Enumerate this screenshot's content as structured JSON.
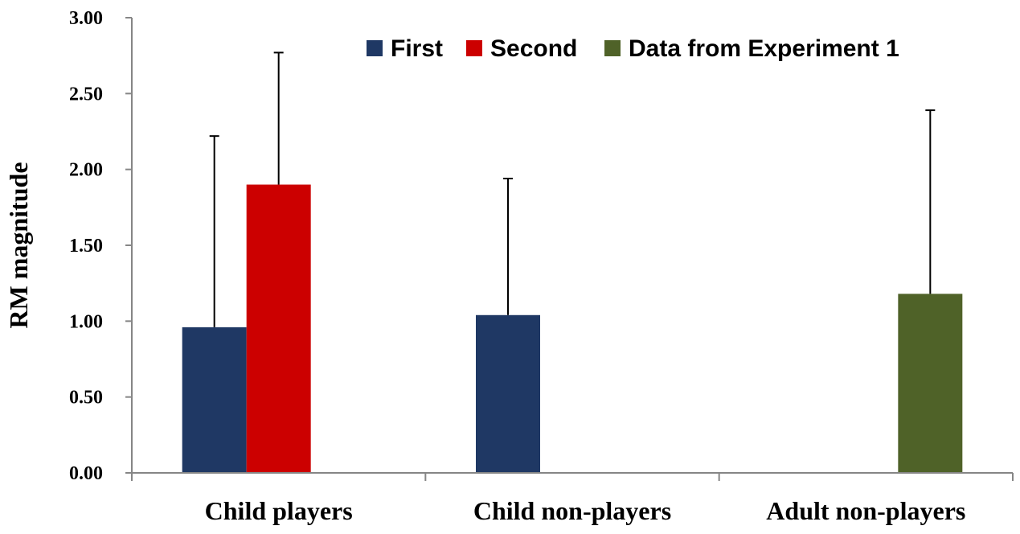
{
  "chart_data": {
    "type": "bar",
    "ylabel": "RM magnitude",
    "ylim": [
      0,
      3
    ],
    "ytick_step": 0.5,
    "ytick_labels": [
      "0.00",
      "0.50",
      "1.00",
      "1.50",
      "2.00",
      "2.50",
      "3.00"
    ],
    "grid": false,
    "legend_position": "top-right",
    "categories": [
      "Child players",
      "Child non-players",
      "Adult non-players"
    ],
    "series": [
      {
        "name": "First",
        "color": "#1F3864",
        "values": [
          0.96,
          1.04,
          null
        ],
        "errors": [
          1.26,
          0.9,
          null
        ]
      },
      {
        "name": "Second",
        "color": "#CC0000",
        "values": [
          1.9,
          null,
          null
        ],
        "errors": [
          0.87,
          null,
          null
        ]
      },
      {
        "name": "Data from Experiment 1",
        "color": "#4F6228",
        "values": [
          null,
          null,
          1.18
        ],
        "errors": [
          null,
          null,
          1.21
        ]
      }
    ]
  }
}
